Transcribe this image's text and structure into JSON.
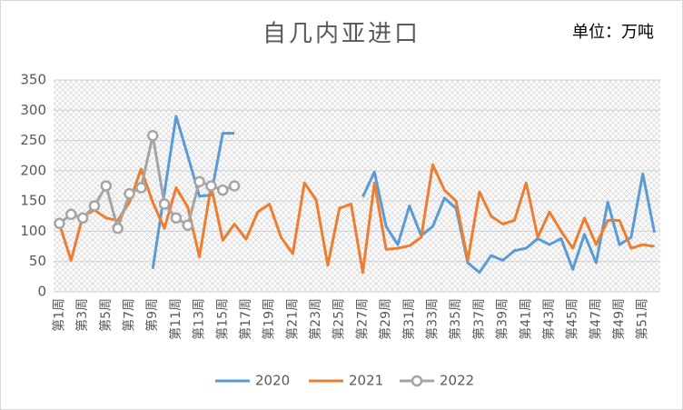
{
  "chart_data": {
    "type": "line",
    "title": "自几内亚进口",
    "annotation": "单位：万吨",
    "categories": [
      "第1周",
      null,
      "第3周",
      null,
      "第5周",
      null,
      "第7周",
      null,
      "第9周",
      null,
      "第11周",
      null,
      "第13周",
      null,
      "第15周",
      null,
      "第17周",
      null,
      "第19周",
      null,
      "第21周",
      null,
      "第23周",
      null,
      "第25周",
      null,
      "第27周",
      null,
      "第29周",
      null,
      "第31周",
      null,
      "第33周",
      null,
      "第35周",
      null,
      "第37周",
      null,
      "第39周",
      null,
      "第41周",
      null,
      "第43周",
      null,
      "第45周",
      null,
      "第47周",
      null,
      "第49周",
      null,
      "第51周",
      null
    ],
    "series": [
      {
        "name": "2020",
        "color": "#5b9bd5",
        "marker": false,
        "values": [
          null,
          null,
          null,
          null,
          null,
          null,
          null,
          null,
          38,
          164,
          290,
          225,
          158,
          160,
          262,
          262,
          null,
          null,
          null,
          null,
          null,
          null,
          null,
          null,
          null,
          null,
          157,
          198,
          108,
          78,
          142,
          93,
          108,
          155,
          138,
          48,
          32,
          60,
          52,
          68,
          72,
          88,
          78,
          88,
          37,
          95,
          48,
          148,
          78,
          90,
          195,
          98
        ]
      },
      {
        "name": "2021",
        "color": "#ed7d31",
        "marker": false,
        "values": [
          112,
          52,
          125,
          135,
          122,
          118,
          148,
          203,
          148,
          105,
          172,
          140,
          58,
          175,
          85,
          112,
          87,
          132,
          145,
          90,
          63,
          180,
          152,
          44,
          138,
          145,
          32,
          180,
          70,
          72,
          76,
          90,
          210,
          168,
          150,
          52,
          165,
          125,
          112,
          118,
          180,
          90,
          132,
          100,
          72,
          122,
          78,
          118,
          118,
          72,
          78,
          75
        ]
      },
      {
        "name": "2022",
        "color": "#a5a5a5",
        "marker": true,
        "values": [
          113,
          128,
          122,
          142,
          175,
          105,
          162,
          172,
          258,
          145,
          122,
          110,
          182,
          175,
          168,
          175,
          null,
          null,
          null,
          null,
          null,
          null,
          null,
          null,
          null,
          null,
          null,
          null,
          null,
          null,
          null,
          null,
          null,
          null,
          null,
          null,
          null,
          null,
          null,
          null,
          null,
          null,
          null,
          null,
          null,
          null,
          null,
          null,
          null,
          null,
          null,
          null
        ]
      }
    ],
    "ylim": [
      0,
      350
    ],
    "yticks": [
      0,
      50,
      100,
      150,
      200,
      250,
      300,
      350
    ],
    "grid": true,
    "legend": "bottom"
  }
}
